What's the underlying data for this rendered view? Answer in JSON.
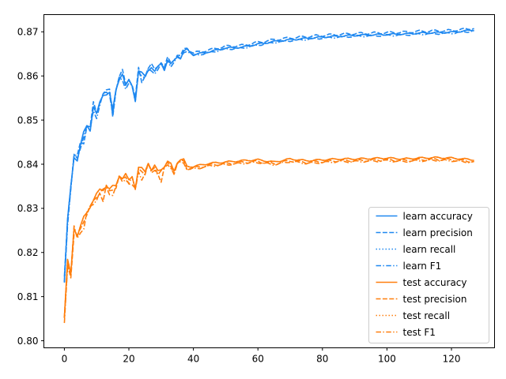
{
  "chart_data": {
    "type": "line",
    "title": "",
    "xlabel": "",
    "ylabel": "",
    "xlim": [
      -6.35,
      133.35
    ],
    "ylim": [
      0.7984,
      0.8739
    ],
    "xticks": [
      0,
      20,
      40,
      60,
      80,
      100,
      120
    ],
    "yticks": [
      0.8,
      0.81,
      0.82,
      0.83,
      0.84,
      0.85,
      0.86,
      0.87
    ],
    "ytick_labels": [
      "0.80",
      "0.81",
      "0.82",
      "0.83",
      "0.84",
      "0.85",
      "0.86",
      "0.87"
    ],
    "grid": false,
    "legend_position": "lower-right",
    "colors": {
      "learn": "#1f88f0",
      "test": "#ff7f0e"
    },
    "anchors": {
      "learn_accuracy": [
        [
          0,
          0.8132
        ],
        [
          1,
          0.827
        ],
        [
          2,
          0.835
        ],
        [
          3,
          0.842
        ],
        [
          4,
          0.841
        ],
        [
          5,
          0.844
        ],
        [
          6,
          0.847
        ],
        [
          7,
          0.849
        ],
        [
          8,
          0.848
        ],
        [
          9,
          0.853
        ],
        [
          10,
          0.851
        ],
        [
          11,
          0.854
        ],
        [
          12,
          0.856
        ],
        [
          13,
          0.856
        ],
        [
          14,
          0.856
        ],
        [
          15,
          0.852
        ],
        [
          16,
          0.857
        ],
        [
          17,
          0.8595
        ],
        [
          18,
          0.8605
        ],
        [
          19,
          0.8575
        ],
        [
          20,
          0.859
        ],
        [
          21,
          0.858
        ],
        [
          22,
          0.8545
        ],
        [
          23,
          0.861
        ],
        [
          24,
          0.8605
        ],
        [
          25,
          0.86
        ],
        [
          26,
          0.8615
        ],
        [
          27,
          0.862
        ],
        [
          28,
          0.8608
        ],
        [
          29,
          0.862
        ],
        [
          30,
          0.863
        ],
        [
          31,
          0.8615
        ],
        [
          32,
          0.8635
        ],
        [
          33,
          0.8625
        ],
        [
          34,
          0.8635
        ],
        [
          35,
          0.8645
        ],
        [
          36,
          0.864
        ],
        [
          37,
          0.8655
        ],
        [
          38,
          0.866
        ],
        [
          40,
          0.8648
        ],
        [
          45,
          0.8655
        ],
        [
          50,
          0.8663
        ],
        [
          55,
          0.8665
        ],
        [
          60,
          0.8672
        ],
        [
          65,
          0.8678
        ],
        [
          70,
          0.8682
        ],
        [
          75,
          0.8685
        ],
        [
          80,
          0.8688
        ],
        [
          85,
          0.869
        ],
        [
          90,
          0.8692
        ],
        [
          95,
          0.8693
        ],
        [
          100,
          0.8694
        ],
        [
          105,
          0.8695
        ],
        [
          110,
          0.8697
        ],
        [
          115,
          0.8698
        ],
        [
          120,
          0.8699
        ],
        [
          127,
          0.8704
        ]
      ],
      "test_accuracy": [
        [
          0,
          0.8048
        ],
        [
          1,
          0.818
        ],
        [
          2,
          0.8155
        ],
        [
          3,
          0.826
        ],
        [
          4,
          0.8235
        ],
        [
          5,
          0.8255
        ],
        [
          6,
          0.828
        ],
        [
          7,
          0.8295
        ],
        [
          8,
          0.8305
        ],
        [
          9,
          0.8315
        ],
        [
          10,
          0.833
        ],
        [
          11,
          0.8345
        ],
        [
          12,
          0.8345
        ],
        [
          13,
          0.835
        ],
        [
          14,
          0.834
        ],
        [
          15,
          0.835
        ],
        [
          16,
          0.8355
        ],
        [
          17,
          0.8375
        ],
        [
          18,
          0.8365
        ],
        [
          19,
          0.8375
        ],
        [
          20,
          0.8365
        ],
        [
          21,
          0.8375
        ],
        [
          22,
          0.8345
        ],
        [
          23,
          0.839
        ],
        [
          24,
          0.839
        ],
        [
          25,
          0.8385
        ],
        [
          26,
          0.8405
        ],
        [
          27,
          0.8385
        ],
        [
          28,
          0.8395
        ],
        [
          29,
          0.8385
        ],
        [
          30,
          0.839
        ],
        [
          31,
          0.8395
        ],
        [
          32,
          0.8405
        ],
        [
          33,
          0.84
        ],
        [
          34,
          0.8385
        ],
        [
          35,
          0.8405
        ],
        [
          36,
          0.841
        ],
        [
          37,
          0.841
        ],
        [
          38,
          0.8395
        ],
        [
          40,
          0.8395
        ],
        [
          45,
          0.8402
        ],
        [
          50,
          0.8405
        ],
        [
          55,
          0.8408
        ],
        [
          60,
          0.841
        ],
        [
          65,
          0.8405
        ],
        [
          70,
          0.8412
        ],
        [
          75,
          0.8408
        ],
        [
          80,
          0.841
        ],
        [
          85,
          0.8412
        ],
        [
          90,
          0.8412
        ],
        [
          95,
          0.8413
        ],
        [
          100,
          0.8414
        ],
        [
          105,
          0.8412
        ],
        [
          110,
          0.8414
        ],
        [
          115,
          0.8415
        ],
        [
          120,
          0.8414
        ],
        [
          127,
          0.841
        ]
      ]
    },
    "series": [
      {
        "name": "learn accuracy",
        "group": "learn",
        "dash": "solid",
        "offset": 0,
        "amp": 0.0006,
        "phase": 0.3,
        "noise": 0.0
      },
      {
        "name": "learn precision",
        "group": "learn",
        "dash": "dashed",
        "offset": 0.0004,
        "amp": 0.0009,
        "phase": 1.7,
        "noise": 0.0015
      },
      {
        "name": "learn recall",
        "group": "learn",
        "dash": "dotted",
        "offset": 0,
        "amp": 0.0006,
        "phase": 0.3,
        "noise": 0.0
      },
      {
        "name": "learn F1",
        "group": "learn",
        "dash": "dashdot",
        "offset": -0.0002,
        "amp": 0.0007,
        "phase": 2.9,
        "noise": 0.001
      },
      {
        "name": "test accuracy",
        "group": "test",
        "dash": "solid",
        "offset": 0,
        "amp": 0.0006,
        "phase": 0.9,
        "noise": 0.0
      },
      {
        "name": "test precision",
        "group": "test",
        "dash": "dashed",
        "offset": -0.0004,
        "amp": 0.0009,
        "phase": 2.2,
        "noise": 0.0015
      },
      {
        "name": "test recall",
        "group": "test",
        "dash": "dotted",
        "offset": 0,
        "amp": 0.0006,
        "phase": 0.9,
        "noise": 0.0
      },
      {
        "name": "test F1",
        "group": "test",
        "dash": "dashdot",
        "offset": -0.0006,
        "amp": 0.0007,
        "phase": 3.4,
        "noise": 0.001
      }
    ]
  }
}
